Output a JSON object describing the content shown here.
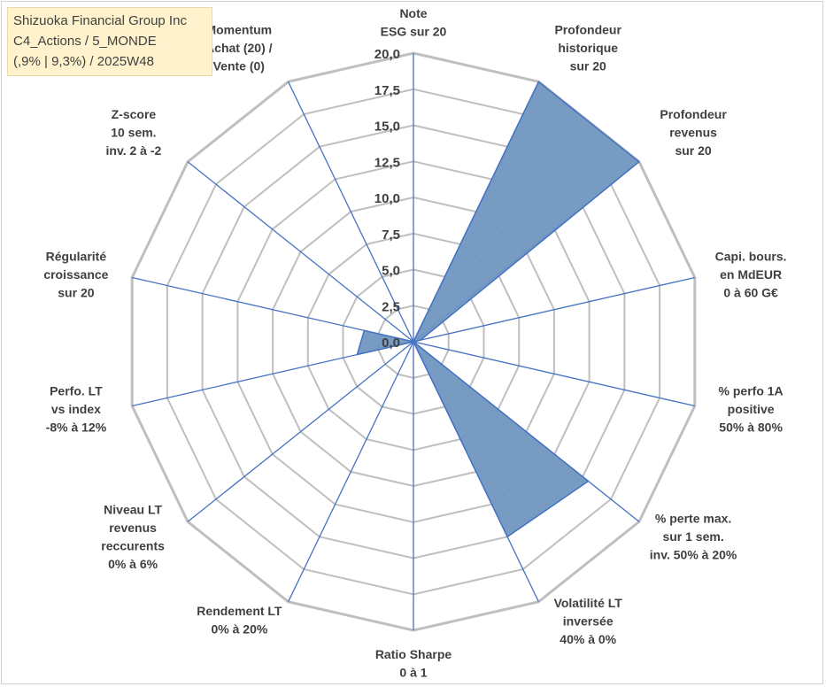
{
  "header": {
    "line1": "Shizuoka Financial Group Inc",
    "line2": "C4_Actions / 5_MONDE",
    "line3": "(,9% | 9,3%) / 2025W48"
  },
  "colors": {
    "fill": "#7096c0",
    "stroke": "#4472c4",
    "grid": "#bfbfbf",
    "spoke": "#4472c4",
    "text": "#404040",
    "header_bg": "#fff2cc"
  },
  "chart_data": {
    "type": "radar",
    "range": [
      0,
      20
    ],
    "tick_step": 2.5,
    "tick_labels": [
      "0,0",
      "2,5",
      "5,0",
      "7,5",
      "10,0",
      "12,5",
      "15,0",
      "17,5",
      "20,0"
    ],
    "axes": [
      {
        "label": [
          "Note",
          "ESG sur 20"
        ],
        "value": 0
      },
      {
        "label": [
          "Profondeur",
          "historique",
          "sur 20"
        ],
        "value": 20
      },
      {
        "label": [
          "Profondeur",
          "revenus",
          "sur 20"
        ],
        "value": 20
      },
      {
        "label": [
          "Capi. bours.",
          "en MdEUR",
          "0 à 60 G€"
        ],
        "value": 0.5
      },
      {
        "label": [
          "% perfo 1A",
          "positive",
          "50% à 80%"
        ],
        "value": 0
      },
      {
        "label": [
          "% perte max.",
          "sur 1 sem.",
          "inv. 50% à 20%"
        ],
        "value": 15.5
      },
      {
        "label": [
          "Volatilité LT",
          "inversée",
          "40% à 0%"
        ],
        "value": 15
      },
      {
        "label": [
          "Ratio Sharpe",
          "0 à 1"
        ],
        "value": 0
      },
      {
        "label": [
          "Rendement LT",
          "0% à 20%"
        ],
        "value": 0
      },
      {
        "label": [
          "Niveau LT",
          "revenus",
          "reccurents",
          "0% à 6%"
        ],
        "value": 0
      },
      {
        "label": [
          "Perfo. LT",
          "vs index",
          "-8% à 12%"
        ],
        "value": 4
      },
      {
        "label": [
          "Régularité",
          "croissance",
          "sur 20"
        ],
        "value": 3.5
      },
      {
        "label": [
          "Z-score",
          "10 sem.",
          "inv. 2 à -2"
        ],
        "value": 0
      },
      {
        "label": [
          "Momentum",
          "Achat (20) /",
          "Vente (0)"
        ],
        "value": 0
      }
    ]
  }
}
